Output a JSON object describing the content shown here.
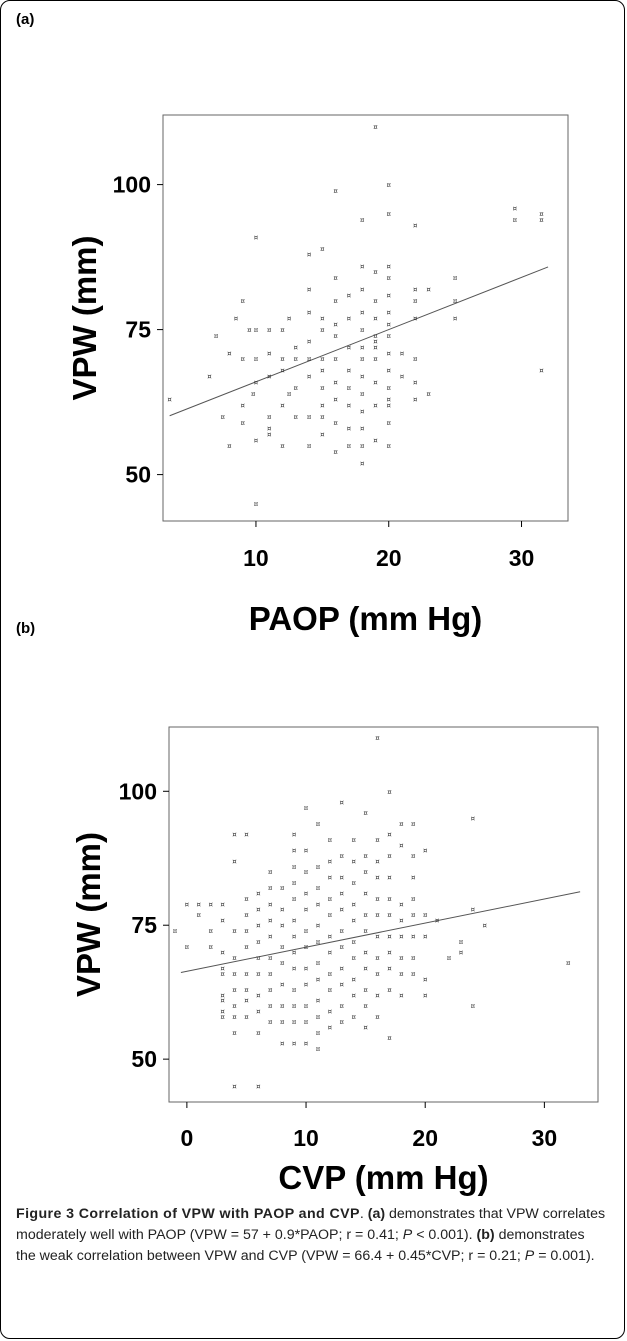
{
  "panels": {
    "a": {
      "label": "(a)"
    },
    "b": {
      "label": "(b)"
    }
  },
  "chart_data": [
    {
      "type": "scatter",
      "panel": "(a)",
      "xlabel": "PAOP (mm Hg)",
      "ylabel": "VPW (mm)",
      "xlim": [
        3,
        33.5
      ],
      "ylim": [
        42,
        112
      ],
      "xticks": [
        10,
        20,
        30
      ],
      "yticks": [
        50,
        75,
        100
      ],
      "marker": "glyph",
      "points": [
        [
          3.5,
          63
        ],
        [
          6.5,
          67
        ],
        [
          7,
          74
        ],
        [
          7.5,
          60
        ],
        [
          8,
          71
        ],
        [
          8,
          55
        ],
        [
          8.5,
          77
        ],
        [
          9,
          80
        ],
        [
          9,
          70
        ],
        [
          9,
          62
        ],
        [
          9,
          59
        ],
        [
          9.5,
          75
        ],
        [
          9.8,
          64
        ],
        [
          10,
          66
        ],
        [
          10,
          45
        ],
        [
          10,
          91
        ],
        [
          10,
          75
        ],
        [
          10,
          56
        ],
        [
          10,
          70
        ],
        [
          11,
          71
        ],
        [
          11,
          67
        ],
        [
          11,
          60
        ],
        [
          11,
          58
        ],
        [
          11,
          75
        ],
        [
          11,
          57
        ],
        [
          12,
          75
        ],
        [
          12,
          68
        ],
        [
          12,
          62
        ],
        [
          12,
          70
        ],
        [
          12,
          55
        ],
        [
          12.5,
          77
        ],
        [
          12.5,
          64
        ],
        [
          13,
          70
        ],
        [
          13,
          72
        ],
        [
          13,
          65
        ],
        [
          13,
          60
        ],
        [
          14,
          82
        ],
        [
          14,
          78
        ],
        [
          14,
          73
        ],
        [
          14,
          70
        ],
        [
          14,
          67
        ],
        [
          14,
          60
        ],
        [
          14,
          55
        ],
        [
          14,
          88
        ],
        [
          15,
          89
        ],
        [
          15,
          77
        ],
        [
          15,
          75
        ],
        [
          15,
          70
        ],
        [
          15,
          68
        ],
        [
          15,
          65
        ],
        [
          15,
          62
        ],
        [
          15,
          60
        ],
        [
          15,
          57
        ],
        [
          16,
          99
        ],
        [
          16,
          84
        ],
        [
          16,
          80
        ],
        [
          16,
          76
        ],
        [
          16,
          74
        ],
        [
          16,
          70
        ],
        [
          16,
          66
        ],
        [
          16,
          63
        ],
        [
          16,
          59
        ],
        [
          16,
          54
        ],
        [
          17,
          81
        ],
        [
          17,
          77
        ],
        [
          17,
          72
        ],
        [
          17,
          68
        ],
        [
          17,
          65
        ],
        [
          17,
          62
        ],
        [
          17,
          58
        ],
        [
          17,
          55
        ],
        [
          18,
          94
        ],
        [
          18,
          86
        ],
        [
          18,
          82
        ],
        [
          18,
          78
        ],
        [
          18,
          75
        ],
        [
          18,
          72
        ],
        [
          18,
          70
        ],
        [
          18,
          67
        ],
        [
          18,
          64
        ],
        [
          18,
          61
        ],
        [
          18,
          58
        ],
        [
          18,
          55
        ],
        [
          18,
          52
        ],
        [
          19,
          110
        ],
        [
          19,
          85
        ],
        [
          19,
          80
        ],
        [
          19,
          77
        ],
        [
          19,
          74
        ],
        [
          19,
          72
        ],
        [
          19,
          70
        ],
        [
          19,
          66
        ],
        [
          19,
          62
        ],
        [
          19,
          56
        ],
        [
          19,
          73
        ],
        [
          20,
          100
        ],
        [
          20,
          95
        ],
        [
          20,
          86
        ],
        [
          20,
          84
        ],
        [
          20,
          81
        ],
        [
          20,
          78
        ],
        [
          20,
          76
        ],
        [
          20,
          74
        ],
        [
          20,
          71
        ],
        [
          20,
          68
        ],
        [
          20,
          65
        ],
        [
          20,
          62
        ],
        [
          20,
          59
        ],
        [
          20,
          55
        ],
        [
          20,
          63
        ],
        [
          21,
          71
        ],
        [
          21,
          67
        ],
        [
          22,
          93
        ],
        [
          22,
          82
        ],
        [
          22,
          80
        ],
        [
          22,
          77
        ],
        [
          22,
          70
        ],
        [
          22,
          66
        ],
        [
          22,
          63
        ],
        [
          23,
          82
        ],
        [
          23,
          64
        ],
        [
          25,
          84
        ],
        [
          25,
          80
        ],
        [
          25,
          77
        ],
        [
          29.5,
          96
        ],
        [
          29.5,
          94
        ],
        [
          31.5,
          95
        ],
        [
          31.5,
          94
        ],
        [
          31.5,
          68
        ]
      ],
      "regression": {
        "intercept": 57,
        "slope": 0.9,
        "x_range": [
          3.5,
          32
        ]
      }
    },
    {
      "type": "scatter",
      "panel": "(b)",
      "xlabel": "CVP (mm Hg)",
      "ylabel": "VPW (mm)",
      "xlim": [
        -1.5,
        34.5
      ],
      "ylim": [
        42,
        112
      ],
      "xticks": [
        0,
        10,
        20,
        30
      ],
      "yticks": [
        50,
        75,
        100
      ],
      "marker": "glyph",
      "points": [
        [
          -1,
          74
        ],
        [
          0,
          71
        ],
        [
          0,
          79
        ],
        [
          1,
          77
        ],
        [
          1,
          79
        ],
        [
          2,
          79
        ],
        [
          2,
          71
        ],
        [
          2,
          74
        ],
        [
          3,
          62
        ],
        [
          3,
          59
        ],
        [
          3,
          66
        ],
        [
          3,
          70
        ],
        [
          3,
          76
        ],
        [
          3,
          58
        ],
        [
          3,
          61
        ],
        [
          3,
          67
        ],
        [
          3,
          79
        ],
        [
          4,
          63
        ],
        [
          4,
          58
        ],
        [
          4,
          55
        ],
        [
          4,
          60
        ],
        [
          4,
          45
        ],
        [
          4,
          74
        ],
        [
          4,
          66
        ],
        [
          4,
          87
        ],
        [
          4,
          92
        ],
        [
          4,
          69
        ],
        [
          5,
          92
        ],
        [
          5,
          80
        ],
        [
          5,
          77
        ],
        [
          5,
          63
        ],
        [
          5,
          61
        ],
        [
          5,
          58
        ],
        [
          5,
          71
        ],
        [
          5,
          74
        ],
        [
          5,
          66
        ],
        [
          6,
          45
        ],
        [
          6,
          55
        ],
        [
          6,
          59
        ],
        [
          6,
          62
        ],
        [
          6,
          66
        ],
        [
          6,
          69
        ],
        [
          6,
          72
        ],
        [
          6,
          75
        ],
        [
          6,
          78
        ],
        [
          6,
          81
        ],
        [
          7,
          85
        ],
        [
          7,
          82
        ],
        [
          7,
          79
        ],
        [
          7,
          76
        ],
        [
          7,
          73
        ],
        [
          7,
          69
        ],
        [
          7,
          66
        ],
        [
          7,
          63
        ],
        [
          7,
          60
        ],
        [
          7,
          57
        ],
        [
          8,
          64
        ],
        [
          8,
          60
        ],
        [
          8,
          57
        ],
        [
          8,
          53
        ],
        [
          8,
          68
        ],
        [
          8,
          71
        ],
        [
          8,
          75
        ],
        [
          8,
          78
        ],
        [
          8,
          82
        ],
        [
          9,
          92
        ],
        [
          9,
          89
        ],
        [
          9,
          86
        ],
        [
          9,
          83
        ],
        [
          9,
          80
        ],
        [
          9,
          76
        ],
        [
          9,
          73
        ],
        [
          9,
          70
        ],
        [
          9,
          67
        ],
        [
          9,
          63
        ],
        [
          9,
          60
        ],
        [
          9,
          57
        ],
        [
          9,
          53
        ],
        [
          10,
          97
        ],
        [
          10,
          89
        ],
        [
          10,
          85
        ],
        [
          10,
          81
        ],
        [
          10,
          78
        ],
        [
          10,
          74
        ],
        [
          10,
          71
        ],
        [
          10,
          67
        ],
        [
          10,
          64
        ],
        [
          10,
          60
        ],
        [
          10,
          57
        ],
        [
          10,
          53
        ],
        [
          11,
          94
        ],
        [
          11,
          86
        ],
        [
          11,
          82
        ],
        [
          11,
          79
        ],
        [
          11,
          75
        ],
        [
          11,
          72
        ],
        [
          11,
          68
        ],
        [
          11,
          65
        ],
        [
          11,
          61
        ],
        [
          11,
          58
        ],
        [
          11,
          55
        ],
        [
          11,
          52
        ],
        [
          12,
          91
        ],
        [
          12,
          87
        ],
        [
          12,
          84
        ],
        [
          12,
          80
        ],
        [
          12,
          77
        ],
        [
          12,
          73
        ],
        [
          12,
          70
        ],
        [
          12,
          66
        ],
        [
          12,
          63
        ],
        [
          12,
          59
        ],
        [
          12,
          56
        ],
        [
          13,
          98
        ],
        [
          13,
          88
        ],
        [
          13,
          84
        ],
        [
          13,
          81
        ],
        [
          13,
          78
        ],
        [
          13,
          74
        ],
        [
          13,
          71
        ],
        [
          13,
          67
        ],
        [
          13,
          64
        ],
        [
          13,
          60
        ],
        [
          13,
          57
        ],
        [
          14,
          91
        ],
        [
          14,
          87
        ],
        [
          14,
          83
        ],
        [
          14,
          79
        ],
        [
          14,
          76
        ],
        [
          14,
          72
        ],
        [
          14,
          69
        ],
        [
          14,
          65
        ],
        [
          14,
          62
        ],
        [
          14,
          58
        ],
        [
          15,
          96
        ],
        [
          15,
          88
        ],
        [
          15,
          85
        ],
        [
          15,
          81
        ],
        [
          15,
          77
        ],
        [
          15,
          74
        ],
        [
          15,
          70
        ],
        [
          15,
          67
        ],
        [
          15,
          63
        ],
        [
          15,
          60
        ],
        [
          15,
          56
        ],
        [
          16,
          110
        ],
        [
          16,
          91
        ],
        [
          16,
          87
        ],
        [
          16,
          84
        ],
        [
          16,
          80
        ],
        [
          16,
          77
        ],
        [
          16,
          73
        ],
        [
          16,
          69
        ],
        [
          16,
          66
        ],
        [
          16,
          62
        ],
        [
          16,
          58
        ],
        [
          17,
          100
        ],
        [
          17,
          92
        ],
        [
          17,
          88
        ],
        [
          17,
          84
        ],
        [
          17,
          80
        ],
        [
          17,
          77
        ],
        [
          17,
          73
        ],
        [
          17,
          70
        ],
        [
          17,
          67
        ],
        [
          17,
          63
        ],
        [
          17,
          54
        ],
        [
          18,
          94
        ],
        [
          18,
          90
        ],
        [
          18,
          79
        ],
        [
          18,
          76
        ],
        [
          18,
          73
        ],
        [
          18,
          69
        ],
        [
          18,
          66
        ],
        [
          18,
          62
        ],
        [
          19,
          94
        ],
        [
          19,
          88
        ],
        [
          19,
          84
        ],
        [
          19,
          80
        ],
        [
          19,
          77
        ],
        [
          19,
          73
        ],
        [
          19,
          69
        ],
        [
          19,
          66
        ],
        [
          20,
          89
        ],
        [
          20,
          77
        ],
        [
          20,
          73
        ],
        [
          20,
          65
        ],
        [
          20,
          62
        ],
        [
          21,
          76
        ],
        [
          22,
          69
        ],
        [
          23,
          70
        ],
        [
          23,
          72
        ],
        [
          24,
          78
        ],
        [
          24,
          95
        ],
        [
          24,
          60
        ],
        [
          25,
          75
        ],
        [
          32,
          68
        ]
      ],
      "regression": {
        "intercept": 66.4,
        "slope": 0.45,
        "x_range": [
          -0.5,
          33
        ]
      }
    }
  ],
  "caption": {
    "title": "Figure 3 Correlation of VPW with PAOP and CVP",
    "title_end": ". ",
    "a_label": "(a)",
    "a_text": " demonstrates that VPW correlates moderately well with PAOP (VPW = 57 + 0.9*PAOP; r = 0.41; ",
    "p_symbol": "P",
    "a_end": " < 0.001). ",
    "b_label": "(b)",
    "b_text": " demonstrates the weak correlation between VPW and CVP (VPW = 66.4 + 0.45*CVP; r = 0.21; ",
    "b_end": " = 0.001)."
  }
}
